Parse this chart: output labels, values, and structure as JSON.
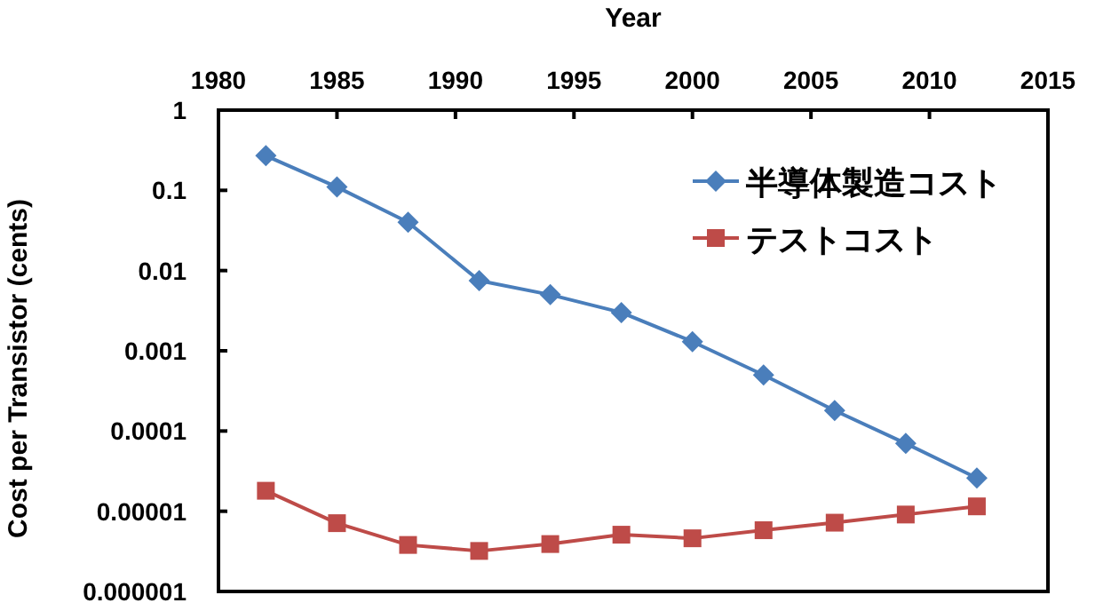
{
  "chart_data": {
    "type": "line",
    "xlabel": "Year",
    "ylabel": "Cost per Transistor (cents)",
    "x": [
      1982,
      1985,
      1988,
      1991,
      1994,
      1997,
      2000,
      2003,
      2006,
      2009,
      2012
    ],
    "series": [
      {
        "name": "半導体製造コスト",
        "color": "#4a7ebb",
        "marker": "diamond",
        "values": [
          0.27,
          0.11,
          0.04,
          0.0075,
          0.005,
          0.003,
          0.0013,
          0.0005,
          0.00018,
          7e-05,
          2.6e-05
        ]
      },
      {
        "name": "テストコスト",
        "color": "#be4b48",
        "marker": "square",
        "values": [
          1.8e-05,
          7.1e-06,
          3.8e-06,
          3.2e-06,
          3.9e-06,
          5.1e-06,
          4.6e-06,
          5.8e-06,
          7.2e-06,
          9.1e-06,
          1.15e-05
        ]
      }
    ],
    "log": "y",
    "xlim": [
      1980,
      2015
    ],
    "xticks": [
      1980,
      1985,
      1990,
      1995,
      2000,
      2005,
      2010,
      2015
    ],
    "ylim": [
      1e-06,
      1
    ],
    "yticks": [
      {
        "value": 1,
        "label": "1"
      },
      {
        "value": 0.1,
        "label": "0.1"
      },
      {
        "value": 0.01,
        "label": "0.01"
      },
      {
        "value": 0.001,
        "label": "0.001"
      },
      {
        "value": 0.0001,
        "label": "0.0001"
      },
      {
        "value": 1e-05,
        "label": "0.00001"
      },
      {
        "value": 1e-06,
        "label": "0.000001"
      }
    ],
    "legend": "top right",
    "grid": false,
    "line_style": "solid"
  }
}
